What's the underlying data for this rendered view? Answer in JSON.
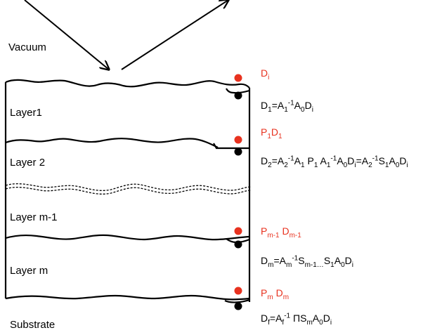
{
  "regions": {
    "vacuum": "Vacuum",
    "layer1": "Layer1",
    "layer2": "Layer 2",
    "layer_m1": "Layer m-1",
    "layer_m": "Layer m",
    "substrate": "Substrate"
  },
  "colors": {
    "accent": "#e8321f",
    "ink": "#000000"
  },
  "interfaces": [
    {
      "id": "i0",
      "red_label": {
        "text": "Di",
        "parts": [
          [
            "D",
            ""
          ],
          [
            "i",
            "sub"
          ]
        ]
      },
      "equation": {
        "text": "D1=A1-1A0Di",
        "parts": [
          [
            "D",
            ""
          ],
          [
            "1",
            "sub"
          ],
          [
            "=A",
            ""
          ],
          [
            "1",
            "sub"
          ],
          [
            "-1",
            "sup"
          ],
          [
            "A",
            ""
          ],
          [
            "0",
            "sub"
          ],
          [
            "D",
            ""
          ],
          [
            "i",
            "sub"
          ]
        ]
      }
    },
    {
      "id": "i1",
      "red_label": {
        "text": "P1D1",
        "parts": [
          [
            "P",
            ""
          ],
          [
            "1",
            "sub"
          ],
          [
            "D",
            ""
          ],
          [
            "1",
            "sub"
          ]
        ]
      },
      "equation": {
        "text": "D2=A2-1A1 P1 A1-1A0Di=A2-1S1A0Di",
        "parts": [
          [
            "D",
            ""
          ],
          [
            "2",
            "sub"
          ],
          [
            "=A",
            ""
          ],
          [
            "2",
            "sub"
          ],
          [
            "-1",
            "sup"
          ],
          [
            "A",
            ""
          ],
          [
            "1",
            "sub"
          ],
          [
            " P",
            ""
          ],
          [
            "1",
            "sub"
          ],
          [
            " A",
            ""
          ],
          [
            "1",
            "sub"
          ],
          [
            "-1",
            "sup"
          ],
          [
            "A",
            ""
          ],
          [
            "0",
            "sub"
          ],
          [
            "D",
            ""
          ],
          [
            "i",
            "sub"
          ],
          [
            "=A",
            ""
          ],
          [
            "2",
            "sub"
          ],
          [
            "-1",
            "sup"
          ],
          [
            "S",
            ""
          ],
          [
            "1",
            "sub"
          ],
          [
            "A",
            ""
          ],
          [
            "0",
            "sub"
          ],
          [
            "D",
            ""
          ],
          [
            "i",
            "sub"
          ]
        ]
      }
    },
    {
      "id": "i2",
      "red_label": {
        "text": "Pm-1 Dm-1",
        "parts": [
          [
            "P",
            ""
          ],
          [
            "m-1",
            "sub"
          ],
          [
            " D",
            ""
          ],
          [
            "m-1",
            "sub"
          ]
        ]
      },
      "equation": {
        "text": "Dm=Am-1Sm-1…S1A0Di",
        "parts": [
          [
            "D",
            ""
          ],
          [
            "m",
            "sub"
          ],
          [
            "=A",
            ""
          ],
          [
            "m",
            "sub"
          ],
          [
            "-1",
            "sup"
          ],
          [
            "S",
            ""
          ],
          [
            "m-1…",
            "sub"
          ],
          [
            "S",
            ""
          ],
          [
            "1",
            "sub"
          ],
          [
            "A",
            ""
          ],
          [
            "0",
            "sub"
          ],
          [
            "D",
            ""
          ],
          [
            "i",
            "sub"
          ]
        ]
      }
    },
    {
      "id": "i3",
      "red_label": {
        "text": "Pm Dm",
        "parts": [
          [
            "P",
            ""
          ],
          [
            "m",
            "sub"
          ],
          [
            " D",
            ""
          ],
          [
            "m",
            "sub"
          ]
        ]
      },
      "equation": {
        "text": "Df=Af-1 ΠSmA0Di",
        "parts": [
          [
            "D",
            ""
          ],
          [
            "f",
            "sub"
          ],
          [
            "=A",
            ""
          ],
          [
            "f",
            "sub"
          ],
          [
            "-1",
            "sup"
          ],
          [
            " ΠS",
            ""
          ],
          [
            "m",
            "sub"
          ],
          [
            "A",
            ""
          ],
          [
            "0",
            "sub"
          ],
          [
            "D",
            ""
          ],
          [
            "i",
            "sub"
          ]
        ]
      }
    }
  ]
}
